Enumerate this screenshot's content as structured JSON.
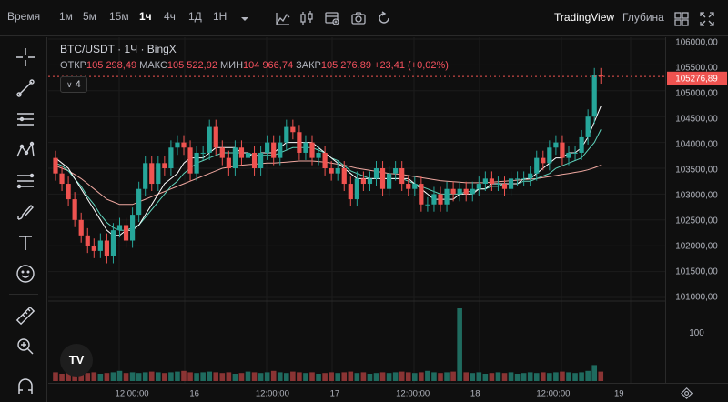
{
  "toolbar": {
    "time_label": "Время",
    "intervals": [
      {
        "label": "1м",
        "active": false
      },
      {
        "label": "5м",
        "active": false
      },
      {
        "label": "15м",
        "active": false
      },
      {
        "label": "1ч",
        "active": true
      },
      {
        "label": "4ч",
        "active": false
      },
      {
        "label": "1Д",
        "active": false
      },
      {
        "label": "1Н",
        "active": false
      }
    ],
    "tradingview_label": "TradingView",
    "depth_label": "Глубина"
  },
  "legend": {
    "symbol": "BTC/USDT · 1Ч · BingX",
    "open_label": "ОТКР",
    "open": "105 298,49",
    "high_label": "МАКС",
    "high": "105 522,92",
    "low_label": "МИН",
    "low": "104 966,74",
    "close_label": "ЗАКР",
    "close": "105 276,89",
    "change": "+23,41 (+0,02%)",
    "indicator_count": "4"
  },
  "price_scale": {
    "labels": [
      "106000,00",
      "105500,00",
      "105000,00",
      "104500,00",
      "104000,00",
      "103500,00",
      "103000,00",
      "102500,00",
      "102000,00",
      "101500,00",
      "101000,00"
    ],
    "current_price": "105276,89",
    "volume_label": "100"
  },
  "time_scale": {
    "labels": [
      "12:00:00",
      "16",
      "12:00:00",
      "17",
      "12:00:00",
      "18",
      "12:00:00",
      "19"
    ]
  },
  "colors": {
    "up": "#26a69a",
    "down": "#ef5350",
    "background": "#0f0f0f",
    "ma_fast": "#ffffff",
    "ma_mid": "#5fd3bc",
    "ma_slow": "#f0a8a0"
  },
  "chart_data": {
    "type": "candlestick",
    "price_range": [
      101000,
      106000
    ],
    "opens": [
      103700,
      103400,
      103200,
      102900,
      102500,
      102200,
      102000,
      101900,
      102100,
      101800,
      102300,
      102400,
      102100,
      102600,
      103100,
      103600,
      103200,
      103600,
      103500,
      103900,
      104000,
      103900,
      103400,
      103800,
      103800,
      104300,
      103900,
      103700,
      103500,
      103900,
      103700,
      103800,
      103500,
      103800,
      104000,
      103700,
      104000,
      104300,
      104200,
      103800,
      104000,
      103700,
      103800,
      103500,
      103400,
      103500,
      103200,
      102900,
      103300,
      103200,
      103300,
      103500,
      103100,
      103400,
      103500,
      103200,
      103100,
      103200,
      102800,
      102800,
      103000,
      102800,
      103100,
      103000,
      103100,
      103000,
      103100,
      103200,
      103300,
      103200,
      103200,
      103100,
      103300,
      103300,
      103300,
      103400,
      103700,
      103600,
      103900,
      104000,
      103700,
      103800,
      103800,
      104100,
      104500,
      105300
    ],
    "closes": [
      103400,
      103200,
      102900,
      102500,
      102200,
      102000,
      101900,
      102100,
      101800,
      102300,
      102400,
      102100,
      102600,
      103100,
      103600,
      103200,
      103600,
      103500,
      103900,
      104000,
      103900,
      103400,
      103800,
      103800,
      104300,
      103900,
      103700,
      103500,
      103900,
      103700,
      103800,
      103500,
      103800,
      104000,
      103700,
      104000,
      104300,
      104200,
      103800,
      104000,
      103700,
      103800,
      103500,
      103400,
      103500,
      103200,
      102900,
      103300,
      103200,
      103300,
      103500,
      103100,
      103400,
      103500,
      103200,
      103100,
      103200,
      102800,
      102800,
      103000,
      102800,
      103100,
      103000,
      103100,
      103000,
      103100,
      103200,
      103300,
      103200,
      103200,
      103100,
      103300,
      103300,
      103300,
      103400,
      103700,
      103600,
      103900,
      104000,
      103700,
      103800,
      103800,
      104100,
      104500,
      105300,
      105277
    ],
    "volumes": [
      12,
      10,
      14,
      12,
      13,
      11,
      12,
      10,
      11,
      12,
      14,
      11,
      12,
      11,
      12,
      13,
      12,
      11,
      12,
      13,
      14,
      12,
      11,
      12,
      13,
      12,
      11,
      12,
      10,
      11,
      13,
      12,
      11,
      12,
      14,
      12,
      11,
      13,
      12,
      11,
      12,
      10,
      11,
      12,
      11,
      12,
      13,
      11,
      12,
      10,
      11,
      12,
      11,
      12,
      13,
      12,
      11,
      12,
      14,
      12,
      11,
      12,
      13,
      100,
      12,
      11,
      12,
      10,
      11,
      12,
      11,
      12,
      10,
      11,
      12,
      11,
      12,
      11,
      12,
      13,
      12,
      11,
      12,
      14,
      22,
      13
    ],
    "ma_fast": [
      103700,
      103600,
      103500,
      103300,
      103100,
      102900,
      102700,
      102500,
      102300,
      102200,
      102200,
      102300,
      102300,
      102400,
      102600,
      102800,
      103000,
      103200,
      103300,
      103400,
      103600,
      103700,
      103700,
      103700,
      103800,
      103900,
      103900,
      103900,
      103900,
      103800,
      103800,
      103700,
      103800,
      103800,
      103800,
      103900,
      104000,
      104000,
      104000,
      104000,
      104000,
      103900,
      103800,
      103700,
      103600,
      103500,
      103400,
      103300,
      103300,
      103300,
      103300,
      103300,
      103300,
      103300,
      103300,
      103300,
      103200,
      103100,
      103000,
      102900,
      102900,
      102900,
      102900,
      103000,
      103000,
      103000,
      103100,
      103100,
      103200,
      103200,
      103200,
      103200,
      103200,
      103300,
      103300,
      103400,
      103500,
      103600,
      103700,
      103700,
      103800,
      103800,
      103900,
      104100,
      104400,
      104700
    ],
    "ma_mid": [
      103600,
      103550,
      103450,
      103300,
      103150,
      102950,
      102800,
      102600,
      102450,
      102350,
      102300,
      102300,
      102350,
      102400,
      102550,
      102700,
      102850,
      103000,
      103150,
      103250,
      103400,
      103500,
      103600,
      103650,
      103700,
      103750,
      103800,
      103800,
      103800,
      103800,
      103800,
      103750,
      103750,
      103750,
      103750,
      103800,
      103850,
      103900,
      103900,
      103900,
      103900,
      103850,
      103800,
      103700,
      103650,
      103550,
      103450,
      103400,
      103350,
      103300,
      103300,
      103300,
      103300,
      103300,
      103300,
      103250,
      103200,
      103150,
      103100,
      103050,
      103000,
      103000,
      103000,
      103000,
      103050,
      103050,
      103100,
      103100,
      103150,
      103150,
      103200,
      103200,
      103200,
      103250,
      103250,
      103300,
      103350,
      103400,
      103500,
      103550,
      103600,
      103650,
      103700,
      103850,
      104000,
      104250
    ],
    "ma_slow": [
      103550,
      103500,
      103450,
      103380,
      103300,
      103200,
      103100,
      103000,
      102900,
      102850,
      102800,
      102800,
      102800,
      102850,
      102900,
      102950,
      103000,
      103050,
      103100,
      103150,
      103200,
      103250,
      103300,
      103350,
      103400,
      103450,
      103500,
      103520,
      103540,
      103560,
      103570,
      103580,
      103590,
      103600,
      103600,
      103610,
      103620,
      103630,
      103640,
      103640,
      103640,
      103630,
      103620,
      103600,
      103580,
      103560,
      103530,
      103500,
      103480,
      103460,
      103440,
      103420,
      103400,
      103390,
      103380,
      103360,
      103340,
      103320,
      103300,
      103280,
      103260,
      103250,
      103240,
      103230,
      103220,
      103220,
      103220,
      103220,
      103230,
      103240,
      103250,
      103260,
      103270,
      103280,
      103290,
      103300,
      103320,
      103340,
      103360,
      103380,
      103400,
      103420,
      103440,
      103470,
      103510,
      103560
    ]
  }
}
